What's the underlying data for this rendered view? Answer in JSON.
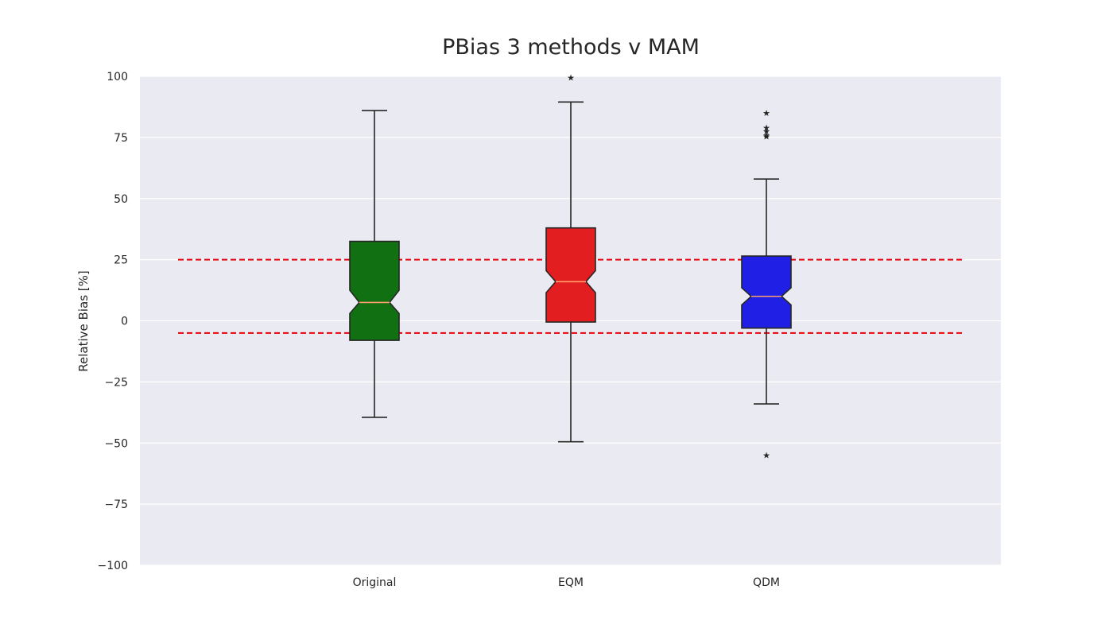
{
  "chart_data": {
    "type": "boxplot",
    "title": "PBias 3 methods v MAM",
    "xlabel": "",
    "ylabel": "Relative Bias [%]",
    "ylim": [
      -100,
      100
    ],
    "yticks": [
      100,
      75,
      50,
      25,
      0,
      -25,
      -50,
      -75,
      -100
    ],
    "ytick_labels": [
      "100",
      "75",
      "50",
      "25",
      "0",
      "−25",
      "−50",
      "−75",
      "−100"
    ],
    "grid": true,
    "notched": true,
    "reference_lines": [
      {
        "y": 25,
        "color": "#e8000b",
        "style": "dashed"
      },
      {
        "y": -5,
        "color": "#e8000b",
        "style": "dashed"
      }
    ],
    "boxes": [
      {
        "label": "Original",
        "color": "#117011",
        "whisker_low": -39.5,
        "q1": -8,
        "median": 7.5,
        "q3": 32.5,
        "whisker_high": 86,
        "notch_low": 3,
        "notch_high": 12.5,
        "outliers": []
      },
      {
        "label": "EQM",
        "color": "#e31e20",
        "whisker_low": -49.5,
        "q1": -0.5,
        "median": 16,
        "q3": 38,
        "whisker_high": 89.5,
        "notch_low": 11.5,
        "notch_high": 20.5,
        "outliers": [
          99.5
        ]
      },
      {
        "label": "QDM",
        "color": "#1f1fe5",
        "whisker_low": -34,
        "q1": -3,
        "median": 10,
        "q3": 26.5,
        "whisker_high": 58,
        "notch_low": 6.5,
        "notch_high": 13.5,
        "outliers": [
          85,
          79,
          77.5,
          76,
          75.5,
          -55
        ]
      }
    ]
  }
}
